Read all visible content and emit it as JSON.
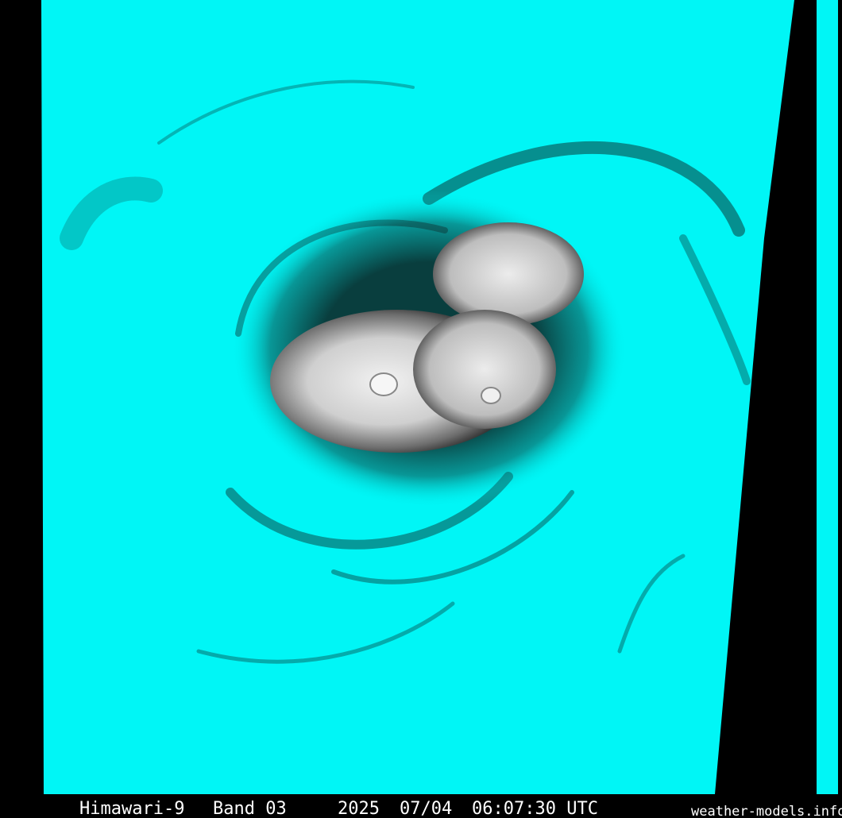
{
  "caption": {
    "satellite": "Himawari-9",
    "band": "Band 03",
    "year": "2025",
    "date": "07/04",
    "time": "06:07:30 UTC"
  },
  "credit": "weather-models.info"
}
